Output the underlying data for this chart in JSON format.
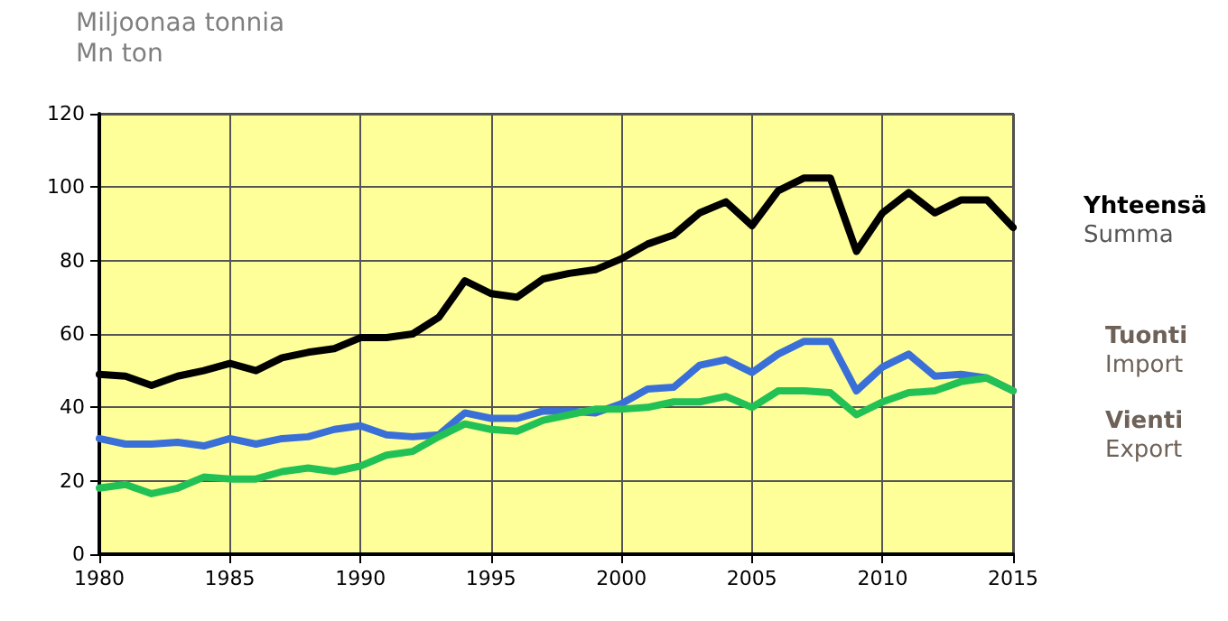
{
  "chart_data": {
    "type": "line",
    "ylabel": "Miljoonaa tonnia\nMn ton",
    "x": [
      1980,
      1981,
      1982,
      1983,
      1984,
      1985,
      1986,
      1987,
      1988,
      1989,
      1990,
      1991,
      1992,
      1993,
      1994,
      1995,
      1996,
      1997,
      1998,
      1999,
      2000,
      2001,
      2002,
      2003,
      2004,
      2005,
      2006,
      2007,
      2008,
      2009,
      2010,
      2011,
      2012,
      2013,
      2014,
      2015
    ],
    "series": [
      {
        "name": "Yhteensä\nSumma",
        "color": "#000000",
        "values": [
          49,
          48.5,
          46,
          48.5,
          50,
          52,
          50,
          53.5,
          55,
          56,
          59,
          59,
          60,
          64.5,
          74.5,
          71,
          70,
          75,
          76.5,
          77.5,
          80.5,
          84.5,
          87,
          93,
          96,
          89.5,
          99,
          102.5,
          102.5,
          82.5,
          93,
          98.5,
          93,
          96.5,
          96.5,
          89
        ]
      },
      {
        "name": "Tuonti\nImport",
        "color": "#3a6fd8",
        "values": [
          31.5,
          30,
          30,
          30.5,
          29.5,
          31.5,
          30,
          31.5,
          32,
          34,
          35,
          32.5,
          32,
          32.5,
          38.5,
          37,
          37,
          39,
          39,
          38.5,
          41,
          45,
          45.5,
          51.5,
          53,
          49.5,
          54.5,
          58,
          58,
          44.5,
          51,
          54.5,
          48.5,
          49,
          48,
          44.5
        ]
      },
      {
        "name": "Vienti\nExport",
        "color": "#22c155",
        "values": [
          18,
          19,
          16.5,
          18,
          21,
          20.5,
          20.5,
          22.5,
          23.5,
          22.5,
          24,
          27,
          28,
          32,
          35.5,
          34,
          33.5,
          36.5,
          38,
          39.5,
          39.5,
          40,
          41.5,
          41.5,
          43,
          40,
          44.5,
          44.5,
          44,
          38,
          41.5,
          44,
          44.5,
          47,
          48,
          44.5
        ]
      }
    ],
    "xlim": [
      1980,
      2015
    ],
    "xticks": [
      1980,
      1985,
      1990,
      1995,
      2000,
      2005,
      2010,
      2015
    ],
    "ylim": [
      0,
      120
    ],
    "yticks": [
      0,
      20,
      40,
      60,
      80,
      100,
      120
    ],
    "grid": true,
    "legend": "right",
    "marker": "none",
    "line_style": "solid"
  }
}
